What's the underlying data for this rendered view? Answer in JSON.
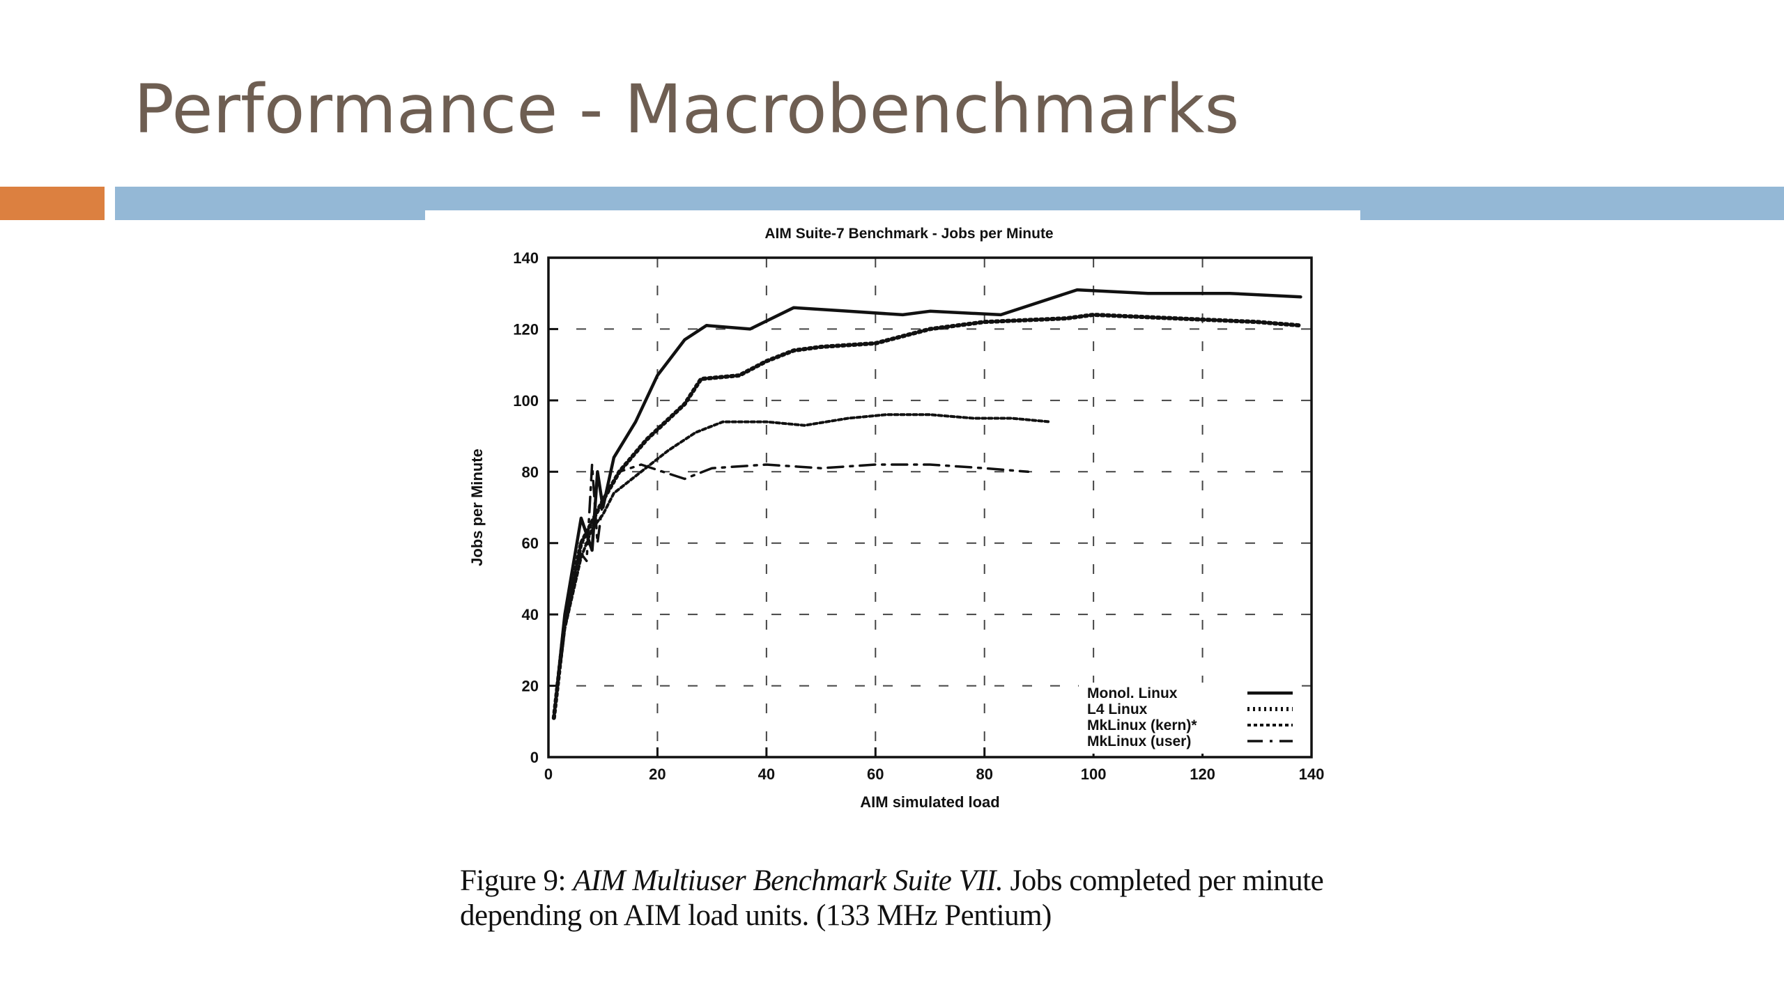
{
  "slide": {
    "title": "Performance - Macrobenchmarks",
    "colors": {
      "title": "#6e5e52",
      "accent_orange": "#dc8040",
      "accent_blue": "#94b8d6"
    }
  },
  "caption": {
    "label": "Figure 9:",
    "title": "AIM Multiuser Benchmark Suite VII.",
    "text": "Jobs completed per minute depending on AIM load units. (133 MHz Pentium)"
  },
  "chart_data": {
    "type": "line",
    "title": "AIM Suite-7 Benchmark - Jobs per Minute",
    "xlabel": "AIM simulated load",
    "ylabel": "Jobs per Minute",
    "xlim": [
      0,
      140
    ],
    "ylim": [
      0,
      140
    ],
    "xticks": [
      0,
      20,
      40,
      60,
      80,
      100,
      120,
      140
    ],
    "yticks": [
      0,
      20,
      40,
      60,
      80,
      100,
      120,
      140
    ],
    "grid": true,
    "legend_position": "bottom-right",
    "series": [
      {
        "name": "Monol. Linux",
        "style": "solid",
        "x": [
          1,
          3,
          6,
          8,
          9,
          10,
          12,
          16,
          20,
          25,
          29,
          37,
          45,
          55,
          65,
          70,
          83,
          97,
          110,
          125,
          138
        ],
        "y": [
          11,
          40,
          67,
          58,
          80,
          70,
          84,
          94,
          107,
          117,
          121,
          120,
          126,
          125,
          124,
          125,
          124,
          131,
          130,
          130,
          129
        ]
      },
      {
        "name": "L4 Linux",
        "style": "dotted",
        "x": [
          1,
          3,
          6,
          8,
          10,
          13,
          18,
          25,
          28,
          35,
          40,
          45,
          50,
          60,
          70,
          80,
          95,
          100,
          115,
          130,
          138
        ],
        "y": [
          11,
          38,
          60,
          66,
          72,
          80,
          89,
          99,
          106,
          107,
          111,
          114,
          115,
          116,
          120,
          122,
          123,
          124,
          123,
          122,
          121
        ]
      },
      {
        "name": "MkLinux (kern)*",
        "style": "dashed",
        "x": [
          1,
          3,
          6,
          8,
          10,
          12,
          17,
          22,
          27,
          32,
          40,
          47,
          55,
          62,
          70,
          78,
          85,
          92
        ],
        "y": [
          11,
          36,
          56,
          64,
          68,
          74,
          80,
          86,
          91,
          94,
          94,
          93,
          95,
          96,
          96,
          95,
          95,
          94
        ]
      },
      {
        "name": "MkLinux (user)",
        "style": "dash-dot",
        "x": [
          1,
          3,
          6,
          7,
          8,
          9,
          10,
          13,
          17,
          21,
          25,
          30,
          40,
          50,
          60,
          70,
          80,
          88
        ],
        "y": [
          11,
          36,
          57,
          55,
          82,
          60,
          72,
          80,
          82,
          80,
          78,
          81,
          82,
          81,
          82,
          82,
          81,
          80
        ]
      }
    ]
  }
}
